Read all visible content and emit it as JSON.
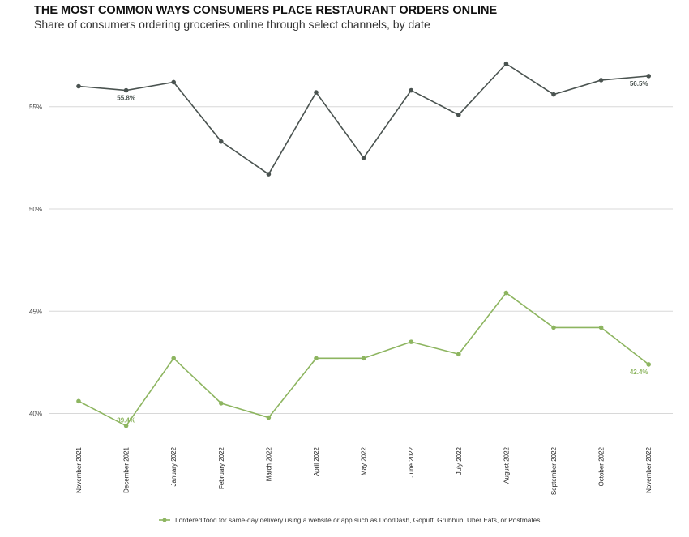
{
  "chart_data": {
    "type": "line",
    "title": "THE MOST COMMON WAYS CONSUMERS PLACE RESTAURANT ORDERS ONLINE",
    "subtitle": "Share of consumers ordering groceries online through select channels, by date",
    "categories": [
      "November 2021",
      "December 2021",
      "January 2022",
      "February 2022",
      "March 2022",
      "April 2022",
      "May 2022",
      "June 2022",
      "July 2022",
      "August 2022",
      "September 2022",
      "October 2022",
      "November 2022"
    ],
    "ylim": [
      39,
      58
    ],
    "yticks": [
      40,
      45,
      50,
      55
    ],
    "ytick_labels": [
      "40%",
      "45%",
      "50%",
      "55%"
    ],
    "grid": true,
    "legend_position": "bottom",
    "series": [
      {
        "name": "",
        "color": "#4a5350",
        "values": [
          56.0,
          55.8,
          56.2,
          53.3,
          51.7,
          55.7,
          52.5,
          55.8,
          54.6,
          57.1,
          55.6,
          56.3,
          56.5
        ],
        "labels": {
          "1": "55.8%",
          "12": "56.5%"
        }
      },
      {
        "name": "I ordered food for same-day delivery using a website or app such as DoorDash, Gopuff, Grubhub, Uber Eats, or Postmates.",
        "color": "#8db560",
        "values": [
          40.6,
          39.4,
          42.7,
          40.5,
          39.8,
          42.7,
          42.7,
          43.5,
          42.9,
          45.9,
          44.2,
          44.2,
          42.4
        ],
        "labels": {
          "1": "39.4%",
          "12": "42.4%"
        }
      }
    ]
  }
}
